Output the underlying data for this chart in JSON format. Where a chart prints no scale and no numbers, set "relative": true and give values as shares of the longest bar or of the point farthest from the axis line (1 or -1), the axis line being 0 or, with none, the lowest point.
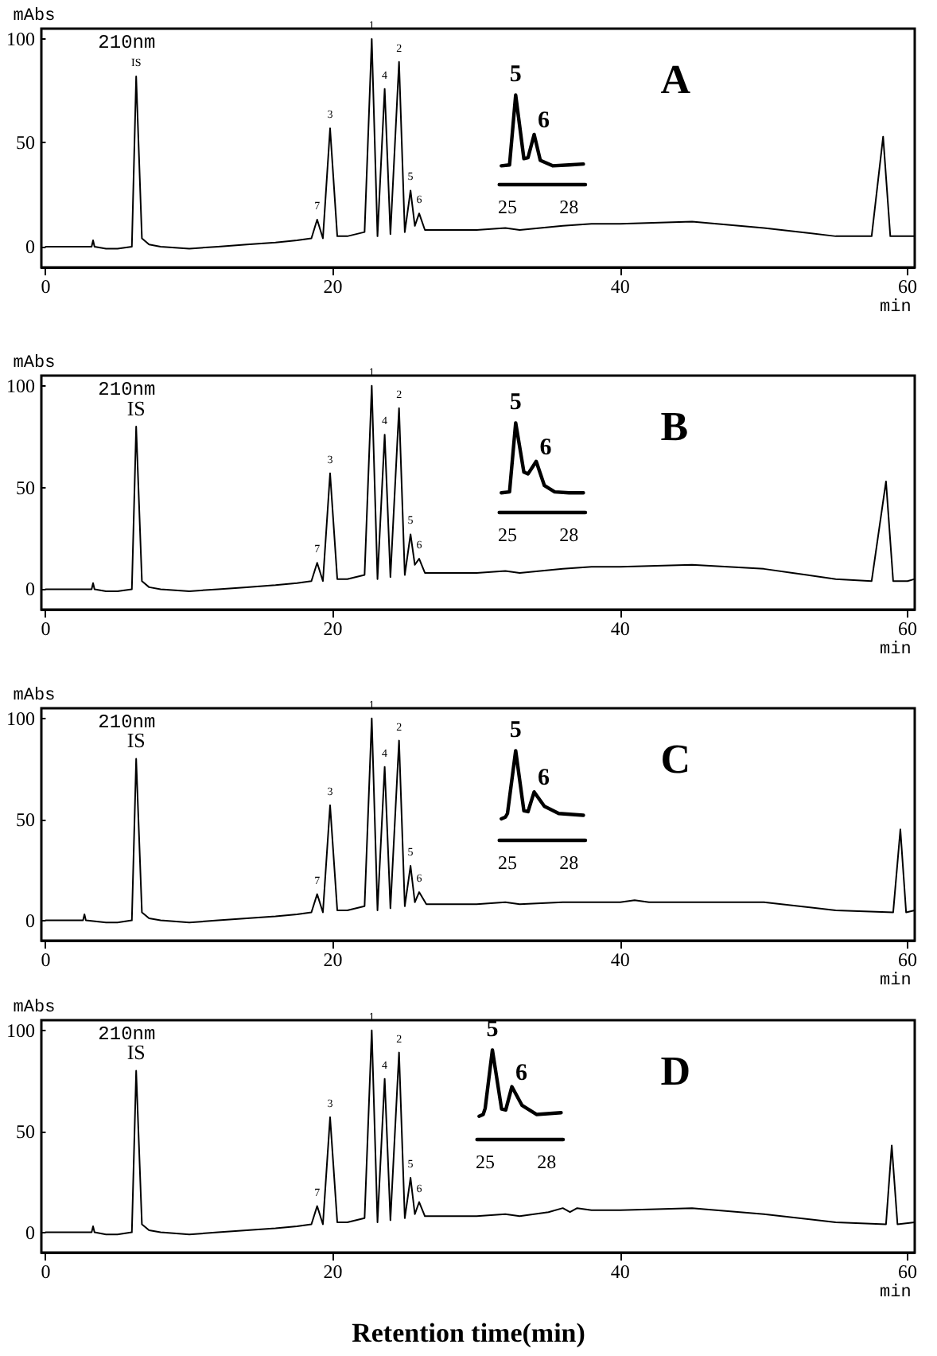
{
  "chart_data": [
    {
      "type": "line",
      "title": "A",
      "subtitle": "210nm",
      "ylabel": "mAbs",
      "xlabel": "min",
      "xlim": [
        -0.3,
        60.5
      ],
      "xticks": [
        0,
        20,
        40,
        60
      ],
      "ylim": [
        -10,
        105
      ],
      "yticks": [
        0,
        50,
        100
      ],
      "series": [
        {
          "color": "#000000",
          "x": [
            0,
            3.2,
            3.3,
            3.4,
            4.2,
            5,
            6,
            6.3,
            6.7,
            7.2,
            8,
            10,
            12,
            14,
            16,
            17.5,
            18.5,
            18.9,
            19.3,
            19.8,
            20.3,
            21,
            22.2,
            22.7,
            23.1,
            23.6,
            24.0,
            24.6,
            25.0,
            25.4,
            25.7,
            26.0,
            26.4,
            27,
            30,
            32,
            33,
            36,
            38,
            40,
            45,
            50,
            55,
            57.5,
            58.3,
            58.8,
            60,
            60.5
          ],
          "values": [
            0,
            0,
            3,
            0,
            -1,
            -1,
            0,
            82,
            4,
            1,
            0,
            -1,
            0,
            1,
            2,
            3,
            4,
            13,
            4,
            57,
            5,
            5,
            7,
            100,
            5,
            76,
            6,
            89,
            7,
            27,
            10,
            16,
            8,
            8,
            8,
            9,
            8,
            10,
            11,
            11,
            12,
            9,
            5,
            5,
            53,
            5,
            5,
            5
          ]
        }
      ],
      "annotations": [
        {
          "text": "IS",
          "x": 6.3,
          "y": 82
        },
        {
          "text": "7",
          "x": 18.9,
          "y": 13
        },
        {
          "text": "3",
          "x": 19.8,
          "y": 57
        },
        {
          "text": "1",
          "x": 22.7,
          "y": 100
        },
        {
          "text": "4",
          "x": 23.6,
          "y": 76
        },
        {
          "text": "2",
          "x": 24.6,
          "y": 89
        },
        {
          "text": "5",
          "x": 25.4,
          "y": 27
        },
        {
          "text": "6",
          "x": 26.0,
          "y": 16
        }
      ]
    },
    {
      "type": "line",
      "relative": true,
      "xlim": [
        24.6,
        28.8
      ],
      "xticks": [
        25,
        28
      ],
      "series": [
        {
          "color": "#000000",
          "x": [
            24.7,
            25.1,
            25.4,
            25.8,
            26.0,
            26.3,
            26.6,
            27.2,
            28.0,
            28.7
          ],
          "values": [
            0.21,
            0.22,
            1.0,
            0.29,
            0.3,
            0.56,
            0.27,
            0.21,
            0.22,
            0.23
          ]
        }
      ],
      "annotations": [
        {
          "text": "5",
          "x": 25.4,
          "y": 1.0
        },
        {
          "text": "6",
          "x": 26.3,
          "y": 0.56
        }
      ]
    },
    {
      "type": "line",
      "title": "B",
      "subtitle": "210nm",
      "ylabel": "mAbs",
      "xlabel": "min",
      "xlim": [
        -0.3,
        60.5
      ],
      "xticks": [
        0,
        20,
        40,
        60
      ],
      "ylim": [
        -10,
        105
      ],
      "yticks": [
        0,
        50,
        100
      ],
      "series": [
        {
          "color": "#000000",
          "x": [
            0,
            3.2,
            3.3,
            3.4,
            4.2,
            5,
            6,
            6.3,
            6.7,
            7.2,
            8,
            10,
            12,
            14,
            16,
            17.5,
            18.5,
            18.9,
            19.3,
            19.8,
            20.3,
            21,
            22.2,
            22.7,
            23.1,
            23.6,
            24.0,
            24.6,
            25.0,
            25.4,
            25.7,
            26.0,
            26.4,
            27,
            30,
            32,
            33,
            36,
            38,
            40,
            45,
            50,
            52,
            55,
            57.5,
            58.5,
            59,
            60,
            60.5
          ],
          "values": [
            0,
            0,
            3,
            0,
            -1,
            -1,
            0,
            80,
            4,
            1,
            0,
            -1,
            0,
            1,
            2,
            3,
            4,
            13,
            4,
            57,
            5,
            5,
            7,
            100,
            5,
            76,
            6,
            89,
            7,
            27,
            12,
            15,
            8,
            8,
            8,
            9,
            8,
            10,
            11,
            11,
            12,
            10,
            8,
            5,
            4,
            53,
            4,
            4,
            5
          ]
        }
      ],
      "annotations": [
        {
          "text": "IS",
          "x": 6.3,
          "y": 80
        },
        {
          "text": "7",
          "x": 18.9,
          "y": 13
        },
        {
          "text": "3",
          "x": 19.8,
          "y": 57
        },
        {
          "text": "1",
          "x": 22.7,
          "y": 100
        },
        {
          "text": "4",
          "x": 23.6,
          "y": 76
        },
        {
          "text": "2",
          "x": 24.6,
          "y": 89
        },
        {
          "text": "5",
          "x": 25.4,
          "y": 27
        },
        {
          "text": "6",
          "x": 26.0,
          "y": 15
        }
      ]
    },
    {
      "type": "line",
      "relative": true,
      "xlim": [
        24.6,
        28.8
      ],
      "xticks": [
        25,
        28
      ],
      "series": [
        {
          "color": "#000000",
          "x": [
            24.7,
            25.1,
            25.4,
            25.8,
            26.0,
            26.4,
            26.8,
            27.3,
            28.0,
            28.7
          ],
          "values": [
            0.22,
            0.23,
            1.0,
            0.45,
            0.43,
            0.57,
            0.3,
            0.23,
            0.22,
            0.22
          ]
        }
      ],
      "annotations": [
        {
          "text": "5",
          "x": 25.4,
          "y": 1.0
        },
        {
          "text": "6",
          "x": 26.4,
          "y": 0.57
        }
      ]
    },
    {
      "type": "line",
      "title": "C",
      "subtitle": "210nm",
      "ylabel": "mAbs",
      "xlabel": "min",
      "xlim": [
        -0.3,
        60.5
      ],
      "xticks": [
        0,
        20,
        40,
        60
      ],
      "ylim": [
        -10,
        105
      ],
      "yticks": [
        0,
        50,
        100
      ],
      "series": [
        {
          "color": "#000000",
          "x": [
            0,
            2.6,
            2.7,
            2.8,
            4.2,
            5,
            6,
            6.3,
            6.7,
            7.2,
            8,
            10,
            12,
            14,
            16,
            17.5,
            18.5,
            18.9,
            19.3,
            19.8,
            20.3,
            21,
            22.2,
            22.7,
            23.1,
            23.6,
            24.0,
            24.6,
            25.0,
            25.4,
            25.7,
            26.0,
            26.5,
            27,
            30,
            32,
            33,
            36,
            40,
            41,
            42,
            45,
            50,
            55,
            59,
            59.5,
            59.9,
            60.5
          ],
          "values": [
            0,
            0,
            3,
            0,
            -1,
            -1,
            0,
            80,
            4,
            1,
            0,
            -1,
            0,
            1,
            2,
            3,
            4,
            13,
            4,
            57,
            5,
            5,
            7,
            100,
            5,
            76,
            6,
            89,
            7,
            27,
            9,
            14,
            8,
            8,
            8,
            9,
            8,
            9,
            9,
            10,
            9,
            9,
            9,
            5,
            4,
            45,
            4,
            5
          ]
        }
      ],
      "annotations": [
        {
          "text": "IS",
          "x": 6.3,
          "y": 80
        },
        {
          "text": "7",
          "x": 18.9,
          "y": 13
        },
        {
          "text": "3",
          "x": 19.8,
          "y": 57
        },
        {
          "text": "1",
          "x": 22.7,
          "y": 100
        },
        {
          "text": "4",
          "x": 23.6,
          "y": 76
        },
        {
          "text": "2",
          "x": 24.6,
          "y": 89
        },
        {
          "text": "5",
          "x": 25.4,
          "y": 27
        },
        {
          "text": "6",
          "x": 26.0,
          "y": 14
        }
      ]
    },
    {
      "type": "line",
      "relative": true,
      "xlim": [
        24.6,
        28.8
      ],
      "xticks": [
        25,
        28
      ],
      "series": [
        {
          "color": "#000000",
          "x": [
            24.7,
            24.9,
            25.0,
            25.4,
            25.8,
            26.0,
            26.3,
            26.8,
            27.5,
            28.7
          ],
          "values": [
            0.24,
            0.26,
            0.3,
            1.0,
            0.33,
            0.32,
            0.54,
            0.38,
            0.3,
            0.28
          ]
        }
      ],
      "annotations": [
        {
          "text": "5",
          "x": 25.4,
          "y": 1.0
        },
        {
          "text": "6",
          "x": 26.3,
          "y": 0.54
        }
      ]
    },
    {
      "type": "line",
      "title": "D",
      "subtitle": "210nm",
      "ylabel": "mAbs",
      "xlabel": "min",
      "xlim": [
        -0.3,
        60.5
      ],
      "xticks": [
        0,
        20,
        40,
        60
      ],
      "ylim": [
        -10,
        105
      ],
      "yticks": [
        0,
        50,
        100
      ],
      "series": [
        {
          "color": "#000000",
          "x": [
            0,
            3.2,
            3.3,
            3.4,
            4.2,
            5,
            6,
            6.3,
            6.7,
            7.2,
            8,
            10,
            12,
            14,
            16,
            17.5,
            18.5,
            18.9,
            19.3,
            19.8,
            20.3,
            21,
            22.2,
            22.7,
            23.1,
            23.6,
            24.0,
            24.6,
            25.0,
            25.4,
            25.7,
            26.0,
            26.4,
            27,
            30,
            32,
            33,
            35,
            36,
            36.5,
            37,
            38,
            40,
            45,
            50,
            55,
            58.5,
            58.9,
            59.3,
            60.5
          ],
          "values": [
            0,
            0,
            3,
            0,
            -1,
            -1,
            0,
            80,
            4,
            1,
            0,
            -1,
            0,
            1,
            2,
            3,
            4,
            13,
            4,
            57,
            5,
            5,
            7,
            100,
            5,
            76,
            6,
            89,
            7,
            27,
            9,
            15,
            8,
            8,
            8,
            9,
            8,
            10,
            12,
            10,
            12,
            11,
            11,
            12,
            9,
            5,
            4,
            43,
            4,
            5
          ]
        }
      ],
      "annotations": [
        {
          "text": "IS",
          "x": 6.3,
          "y": 80
        },
        {
          "text": "7",
          "x": 18.9,
          "y": 13
        },
        {
          "text": "3",
          "x": 19.8,
          "y": 57
        },
        {
          "text": "1",
          "x": 22.7,
          "y": 100
        },
        {
          "text": "4",
          "x": 23.6,
          "y": 76
        },
        {
          "text": "2",
          "x": 24.6,
          "y": 89
        },
        {
          "text": "5",
          "x": 25.4,
          "y": 27
        },
        {
          "text": "6",
          "x": 26.0,
          "y": 15
        },
        "Retention time(min)"
      ]
    },
    {
      "type": "line",
      "relative": true,
      "xlim": [
        24.6,
        28.8
      ],
      "xticks": [
        25,
        28
      ],
      "series": [
        {
          "color": "#000000",
          "x": [
            24.7,
            24.9,
            25.0,
            25.35,
            25.8,
            26.0,
            26.3,
            26.8,
            27.5,
            28.7
          ],
          "values": [
            0.26,
            0.28,
            0.35,
            1.0,
            0.34,
            0.33,
            0.59,
            0.38,
            0.28,
            0.3
          ]
        }
      ],
      "annotations": [
        {
          "text": "5",
          "x": 25.35,
          "y": 1.0
        },
        {
          "text": "6",
          "x": 26.3,
          "y": 0.59
        }
      ]
    }
  ]
}
